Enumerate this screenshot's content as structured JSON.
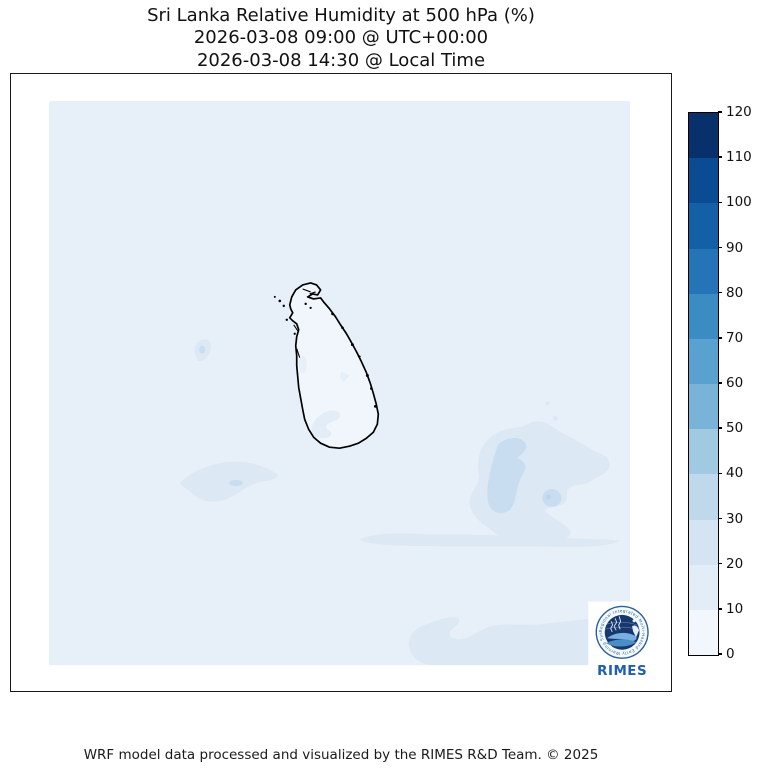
{
  "title": {
    "line1": "Sri Lanka Relative Humidity at 500 hPa (%)",
    "line2": "2026-03-08 09:00 @ UTC+00:00",
    "line3": "2026-03-08 14:30 @ Local Time"
  },
  "footer": {
    "credit": "WRF model data processed and visualized by the RIMES R&D Team. © 2025"
  },
  "logo": {
    "wordmark": "RIMES",
    "ring_text": "Regional Integrated Multi-Hazard Early Warning System"
  },
  "colors": {
    "map_background": "#e7eff8",
    "island_interior": "#f0f6fc",
    "patch_light": "#dce8f4",
    "patch_dark": "#c9ddf0",
    "patch_darker": "#bcd5ea",
    "coastline": "#000000",
    "logo_navy": "#16386e",
    "logo_blue": "#1d5fae",
    "logo_ring_fill": "#f6fafd",
    "logo_ring_stroke": "#2c5f9e"
  },
  "chart_data": {
    "type": "heatmap",
    "subtype": "filled-contour-weather-map",
    "title": "Sri Lanka Relative Humidity at 500 hPa (%)",
    "valid_time_utc": "2026-03-08 09:00 @ UTC+00:00",
    "valid_time_local": "2026-03-08 14:30 @ Local Time",
    "variable": "Relative Humidity",
    "pressure_level": "500 hPa",
    "units": "%",
    "region": "Sri Lanka and surrounding ocean",
    "grid": false,
    "legend_position": "right",
    "colorbar": {
      "min": 0,
      "max": 120,
      "step": 10,
      "ticks": [
        0,
        10,
        20,
        30,
        40,
        50,
        60,
        70,
        80,
        90,
        100,
        110,
        120
      ],
      "colors": [
        "#f2f7fd",
        "#e3edf8",
        "#d4e4f3",
        "#c0d8ec",
        "#a0c9e2",
        "#7ab3d8",
        "#59a1cf",
        "#3b8cc3",
        "#2474b7",
        "#1460a6",
        "#0a4b93",
        "#08306b"
      ]
    },
    "field_summary": {
      "background_value_pct": "10-20",
      "island_interior_value_pct": "0-10",
      "patches": [
        {
          "location": "small spot west of island",
          "value_pct": "20-30"
        },
        {
          "location": "southwest of island over ocean",
          "value_pct": "20-30"
        },
        {
          "location": "east-southeast of island, large blob",
          "value_pct": "20-40"
        },
        {
          "location": "thin band stretching east at ~7N",
          "value_pct": "20-30"
        },
        {
          "location": "southern edge of domain",
          "value_pct": "20-30"
        }
      ]
    }
  }
}
